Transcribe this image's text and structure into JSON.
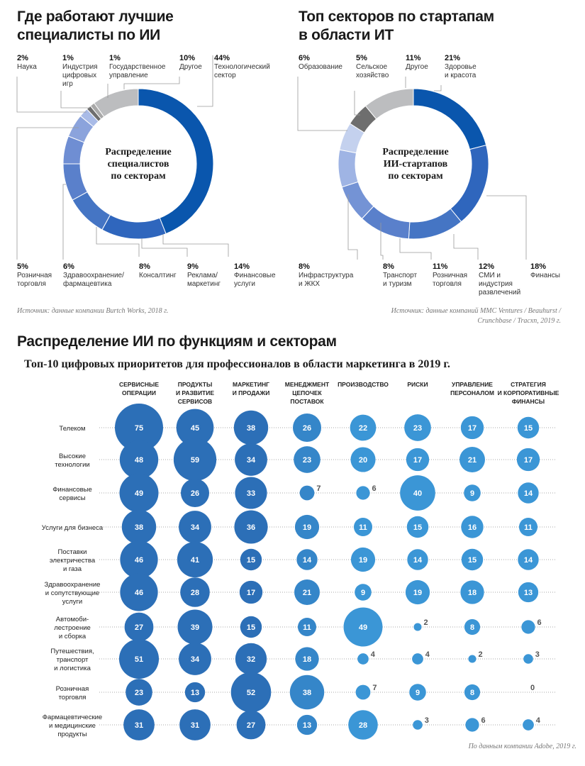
{
  "left_chart": {
    "title_line1": "Где работают лучшие",
    "title_line2": "специалисты по ИИ",
    "center_line1": "Распределение",
    "center_line2": "специалистов",
    "center_line3": "по секторам",
    "source": "Источник: данные компании Burtch Works, 2018 г.",
    "top_labels": [
      {
        "pct": "2%",
        "l1": "Наука",
        "l2": "",
        "l3": ""
      },
      {
        "pct": "1%",
        "l1": "Индустрия",
        "l2": "цифровых",
        "l3": "игр"
      },
      {
        "pct": "1%",
        "l1": "Государственное",
        "l2": "управление",
        "l3": ""
      },
      {
        "pct": "10%",
        "l1": "Другое",
        "l2": "",
        "l3": ""
      },
      {
        "pct": "44%",
        "l1": "Технологический",
        "l2": "сектор",
        "l3": ""
      }
    ],
    "bottom_labels": [
      {
        "pct": "5%",
        "l1": "Розничная",
        "l2": "торговля"
      },
      {
        "pct": "6%",
        "l1": "Здравоохранение/",
        "l2": "фармацевтика"
      },
      {
        "pct": "8%",
        "l1": "Консалтинг",
        "l2": ""
      },
      {
        "pct": "9%",
        "l1": "Реклама/",
        "l2": "маркетинг"
      },
      {
        "pct": "14%",
        "l1": "Финансовые",
        "l2": "услуги"
      }
    ]
  },
  "right_chart": {
    "title_line1": "Топ секторов по стартапам",
    "title_line2": "в области ИТ",
    "center_line1": "Распределение",
    "center_line2": "ИИ-стартапов",
    "center_line3": "по секторам",
    "source_line1": "Источник: данные компаний MMC Ventures / Beauhurst /",
    "source_line2": "Crunchbase / Tracxn, 2019 г.",
    "top_labels": [
      {
        "pct": "6%",
        "l1": "Образование",
        "l2": ""
      },
      {
        "pct": "5%",
        "l1": "Сельское",
        "l2": "хозяйство"
      },
      {
        "pct": "11%",
        "l1": "Другое",
        "l2": ""
      },
      {
        "pct": "21%",
        "l1": "Здоровье",
        "l2": "и красота"
      }
    ],
    "bottom_labels": [
      {
        "pct": "8%",
        "l1": "Инфраструктура",
        "l2": "и ЖКХ",
        "l3": ""
      },
      {
        "pct": "8%",
        "l1": "Транспорт",
        "l2": "и туризм",
        "l3": ""
      },
      {
        "pct": "11%",
        "l1": "Розничная",
        "l2": "торговля",
        "l3": ""
      },
      {
        "pct": "12%",
        "l1": "СМИ и",
        "l2": "индустрия",
        "l3": "развлечений"
      },
      {
        "pct": "18%",
        "l1": "Финансы",
        "l2": "",
        "l3": ""
      }
    ]
  },
  "bubble_section": {
    "title": "Распределение ИИ по функциям и секторам",
    "subtitle": "Топ-10 цифровых приоритетов для профессионалов в области маркетинга в 2019 г.",
    "source": "По данным компании Adobe, 2019 г."
  },
  "chart_data": [
    {
      "type": "pie",
      "categories": [
        "Технологический сектор",
        "Финансовые услуги",
        "Реклама/маркетинг",
        "Консалтинг",
        "Здравоохранение/фармацевтика",
        "Розничная торговля",
        "Наука",
        "Индустрия цифровых игр",
        "Государственное управление",
        "Другое"
      ],
      "values": [
        44,
        14,
        9,
        8,
        6,
        5,
        2,
        1,
        1,
        10
      ],
      "colors": [
        "#0a56ad",
        "#2f66bd",
        "#4575c4",
        "#5a80cb",
        "#6f8ed3",
        "#8ba3dc",
        "#a9bbe7",
        "#6e6e6e",
        "#a8a8a8",
        "#bcbdbf"
      ]
    },
    {
      "type": "pie",
      "categories": [
        "Здоровье и красота",
        "Финансы",
        "СМИ и индустрия развлечений",
        "Розничная торговля",
        "Транспорт и туризм",
        "Инфраструктура и ЖКХ",
        "Образование",
        "Сельское хозяйство",
        "Другое"
      ],
      "values": [
        21,
        18,
        12,
        11,
        8,
        8,
        6,
        5,
        11
      ],
      "colors": [
        "#0a56ad",
        "#2f66bd",
        "#4575c4",
        "#5a80cb",
        "#7493d5",
        "#9fb4e4",
        "#c4d1ee",
        "#6e6e6e",
        "#bcbdbf"
      ]
    },
    {
      "type": "bubble",
      "columns": [
        {
          "l1": "СЕРВИСНЫЕ",
          "l2": "ОПЕРАЦИИ",
          "l3": ""
        },
        {
          "l1": "ПРОДУКТЫ",
          "l2": "И РАЗВИТИЕ",
          "l3": "СЕРВИСОВ"
        },
        {
          "l1": "МАРКЕТИНГ",
          "l2": "И ПРОДАЖИ",
          "l3": ""
        },
        {
          "l1": "МЕНЕДЖМЕНТ",
          "l2": "ЦЕПОЧЕК",
          "l3": "ПОСТАВОК"
        },
        {
          "l1": "ПРОИЗВОДСТВО",
          "l2": "",
          "l3": ""
        },
        {
          "l1": "РИСКИ",
          "l2": "",
          "l3": ""
        },
        {
          "l1": "УПРАВЛЕНИЕ",
          "l2": "ПЕРСОНАЛОМ",
          "l3": ""
        },
        {
          "l1": "СТРАТЕГИЯ",
          "l2": "И КОРПОРАТИВНЫЕ",
          "l3": "ФИНАНСЫ"
        }
      ],
      "rows": [
        {
          "name": [
            "Телеком"
          ],
          "values": [
            75,
            45,
            38,
            26,
            22,
            23,
            17,
            15
          ]
        },
        {
          "name": [
            "Высокие",
            "технологии"
          ],
          "values": [
            48,
            59,
            34,
            23,
            20,
            17,
            21,
            17
          ]
        },
        {
          "name": [
            "Финансовые",
            "сервисы"
          ],
          "values": [
            49,
            26,
            33,
            7,
            6,
            40,
            9,
            14
          ]
        },
        {
          "name": [
            "Услуги для бизнеса"
          ],
          "values": [
            38,
            34,
            36,
            19,
            11,
            15,
            16,
            11
          ]
        },
        {
          "name": [
            "Поставки",
            "электричества",
            "и газа"
          ],
          "values": [
            46,
            41,
            15,
            14,
            19,
            14,
            15,
            14
          ]
        },
        {
          "name": [
            "Здравоохранение",
            "и сопутствующие",
            "услуги"
          ],
          "values": [
            46,
            28,
            17,
            21,
            9,
            19,
            18,
            13
          ]
        },
        {
          "name": [
            "Автомоби-",
            "лестроение",
            "и сборка"
          ],
          "values": [
            27,
            39,
            15,
            11,
            49,
            2,
            8,
            6
          ]
        },
        {
          "name": [
            "Путешествия,",
            "транспорт",
            "и логистика"
          ],
          "values": [
            51,
            34,
            32,
            18,
            4,
            4,
            2,
            3
          ]
        },
        {
          "name": [
            "Розничная",
            "торговля"
          ],
          "values": [
            23,
            13,
            52,
            38,
            7,
            9,
            8,
            0
          ]
        },
        {
          "name": [
            "Фармацевтические",
            "и медицинские",
            "продукты"
          ],
          "values": [
            31,
            31,
            27,
            13,
            28,
            3,
            6,
            4
          ]
        }
      ],
      "column_colors": [
        "#2c6fb7",
        "#2c6fb7",
        "#2c6fb7",
        "#3586c9",
        "#3b96d6",
        "#3b96d6",
        "#3b96d6",
        "#3b96d6"
      ]
    }
  ]
}
